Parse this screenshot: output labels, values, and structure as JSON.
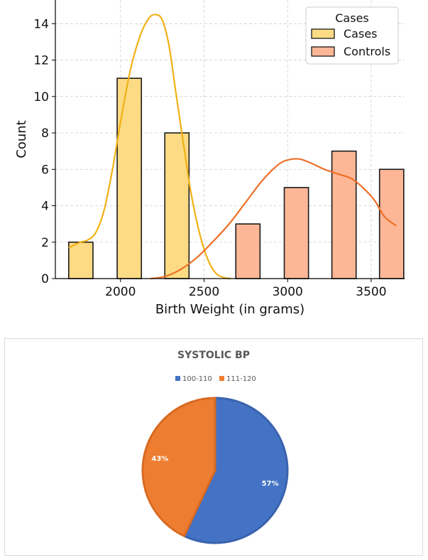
{
  "chart_data": [
    {
      "type": "bar",
      "title": "",
      "xlabel": "Birth Weight (in grams)",
      "ylabel": "Count",
      "xlim": [
        1610,
        3700
      ],
      "ylim": [
        0,
        15.3
      ],
      "x_ticks": [
        2000,
        2500,
        3000,
        3500
      ],
      "y_ticks": [
        0,
        2,
        4,
        6,
        8,
        10,
        12,
        14
      ],
      "grid": true,
      "legend": {
        "title": "Cases",
        "placement": "top-right"
      },
      "series": [
        {
          "name": "Cases",
          "color": "#FDDB85",
          "kde_color": "#F0B114",
          "bars": [
            {
              "x0": 1690,
              "x1": 1835,
              "value": 2
            },
            {
              "x0": 1980,
              "x1": 2125,
              "value": 11
            },
            {
              "x0": 2265,
              "x1": 2410,
              "value": 8
            }
          ],
          "kde_curve": [
            [
              1690,
              1.7
            ],
            [
              1760,
              2.0
            ],
            [
              1800,
              2.1
            ],
            [
              1850,
              2.5
            ],
            [
              1900,
              3.7
            ],
            [
              1950,
              5.9
            ],
            [
              2000,
              8.6
            ],
            [
              2060,
              11.5
            ],
            [
              2120,
              13.4
            ],
            [
              2170,
              14.3
            ],
            [
              2210,
              14.5
            ],
            [
              2250,
              14.2
            ],
            [
              2290,
              12.8
            ],
            [
              2330,
              10.3
            ],
            [
              2380,
              7.2
            ],
            [
              2420,
              4.8
            ],
            [
              2470,
              2.6
            ],
            [
              2520,
              1.1
            ],
            [
              2570,
              0.3
            ],
            [
              2620,
              0.05
            ],
            [
              2660,
              0
            ]
          ]
        },
        {
          "name": "Controls",
          "color": "#FDB797",
          "kde_color": "#EE6F26",
          "bars": [
            {
              "x0": 2690,
              "x1": 2835,
              "value": 3
            },
            {
              "x0": 2980,
              "x1": 3125,
              "value": 5
            },
            {
              "x0": 3265,
              "x1": 3410,
              "value": 7
            },
            {
              "x0": 3550,
              "x1": 3695,
              "value": 6
            }
          ],
          "kde_curve": [
            [
              2180,
              0
            ],
            [
              2260,
              0.1
            ],
            [
              2350,
              0.45
            ],
            [
              2450,
              1.1
            ],
            [
              2550,
              2.0
            ],
            [
              2650,
              3.0
            ],
            [
              2750,
              4.2
            ],
            [
              2850,
              5.4
            ],
            [
              2950,
              6.3
            ],
            [
              3020,
              6.55
            ],
            [
              3080,
              6.55
            ],
            [
              3150,
              6.3
            ],
            [
              3220,
              6.0
            ],
            [
              3300,
              5.75
            ],
            [
              3380,
              5.5
            ],
            [
              3450,
              5.0
            ],
            [
              3520,
              4.3
            ],
            [
              3580,
              3.4
            ],
            [
              3650,
              2.9
            ]
          ]
        }
      ]
    },
    {
      "type": "pie",
      "title": "SYSTOLIC BP",
      "legend": {
        "placement": "top"
      },
      "slices": [
        {
          "label": "100-110",
          "value": 57,
          "display": "57%",
          "color": "#4472C4",
          "border": "#3A63AD"
        },
        {
          "label": "111-120",
          "value": 43,
          "display": "43%",
          "color": "#ED7D31",
          "border": "#D86A22"
        }
      ]
    }
  ]
}
